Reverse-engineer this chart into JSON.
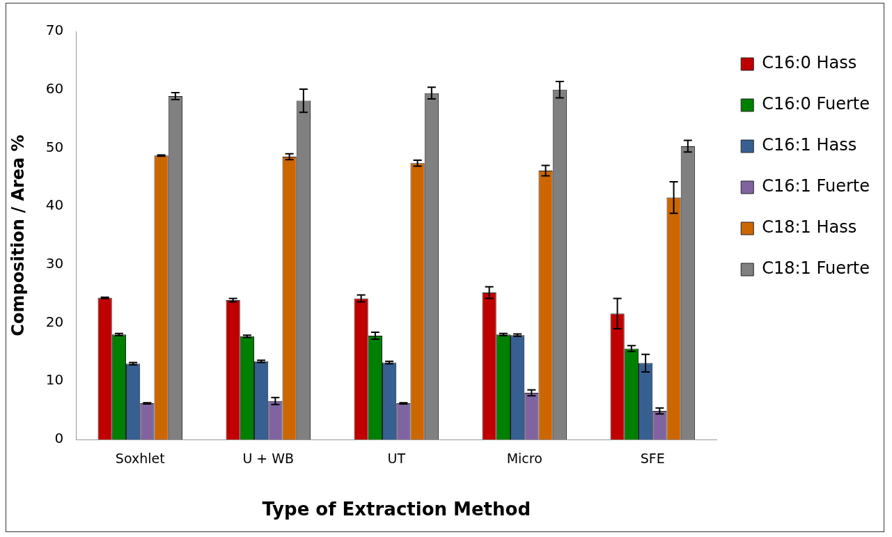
{
  "chart_data": {
    "type": "bar",
    "xlabel": "Type of Extraction Method",
    "ylabel": "Composition / Area %",
    "categories": [
      "Soxhlet",
      "U + WB",
      "UT",
      "Micro",
      "SFE"
    ],
    "series": [
      {
        "name": "C16:0 Hass",
        "color": "#c00000",
        "values": [
          24.3,
          23.9,
          24.2,
          25.2,
          21.6
        ],
        "errors": [
          0.1,
          0.3,
          0.6,
          1.0,
          2.6
        ]
      },
      {
        "name": "C16:0 Fuerte",
        "color": "#008000",
        "values": [
          18.0,
          17.7,
          17.8,
          18.0,
          15.6
        ],
        "errors": [
          0.2,
          0.2,
          0.6,
          0.2,
          0.5
        ]
      },
      {
        "name": "C16:1 Hass",
        "color": "#376092",
        "values": [
          13.0,
          13.4,
          13.2,
          17.9,
          13.1
        ],
        "errors": [
          0.2,
          0.2,
          0.2,
          0.2,
          1.5
        ]
      },
      {
        "name": "C16:1 Fuerte",
        "color": "#8064a2",
        "values": [
          6.2,
          6.6,
          6.2,
          8.0,
          4.9
        ],
        "errors": [
          0.1,
          0.6,
          0.1,
          0.5,
          0.5
        ]
      },
      {
        "name": "C18:1 Hass",
        "color": "#cc6600",
        "values": [
          48.7,
          48.5,
          47.4,
          46.1,
          41.5
        ],
        "errors": [
          0.1,
          0.5,
          0.5,
          0.9,
          2.7
        ]
      },
      {
        "name": "C18:1 Fuerte",
        "color": "#808080",
        "values": [
          58.9,
          58.1,
          59.4,
          60.0,
          50.3
        ],
        "errors": [
          0.6,
          2.0,
          1.0,
          1.4,
          1.0
        ]
      }
    ],
    "ylim": [
      0,
      70
    ],
    "yticks": [
      0,
      10,
      20,
      30,
      40,
      50,
      60,
      70
    ],
    "grid": false,
    "legend": "right"
  }
}
